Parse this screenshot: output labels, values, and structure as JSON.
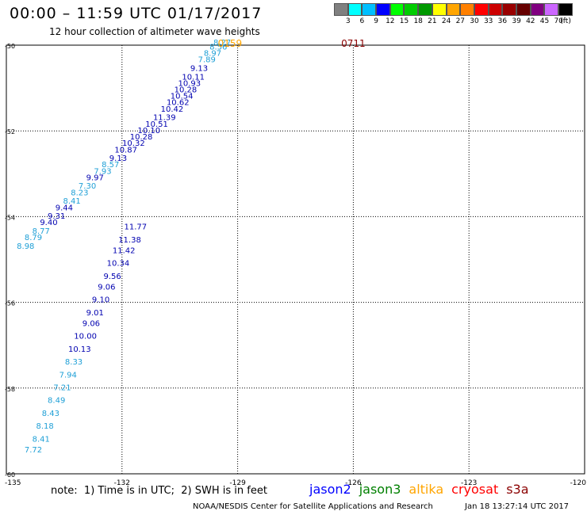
{
  "header": {
    "title": "00:00 – 11:59 UTC 01/17/2017",
    "subtitle": "12 hour collection of altimeter wave heights"
  },
  "color_scale": {
    "colors": [
      "#808080",
      "#00ffff",
      "#00bfff",
      "#0000ff",
      "#00ff00",
      "#00cc00",
      "#009900",
      "#ffff00",
      "#ffa500",
      "#ff8000",
      "#ff0000",
      "#cc0000",
      "#990000",
      "#660000",
      "#800080",
      "#cc66ff",
      "#000000"
    ],
    "labels": [
      "3",
      "6",
      "9",
      "12",
      "15",
      "18",
      "21",
      "24",
      "27",
      "30",
      "33",
      "36",
      "39",
      "42",
      "45",
      "70",
      "(ft)"
    ]
  },
  "chart_data": {
    "type": "scatter",
    "xlim": [
      -135,
      -120
    ],
    "ylim": [
      -60,
      -50
    ],
    "x_ticks": [
      "-135",
      "-132",
      "-129",
      "-126",
      "-123",
      "-120"
    ],
    "y_ticks": [
      "-50",
      "-52",
      "-54",
      "-56",
      "-58",
      "-60"
    ],
    "grid": true,
    "series_colors": {
      "jason2": "#0000cd",
      "jason3": "#008000",
      "altika": "#ffa500",
      "cryosat": "#dc143c",
      "s3a": "#8b0000"
    },
    "value_colors": {
      "light": "#1e9fd6",
      "dark": "#0000b0"
    },
    "tracks": [
      {
        "name": "jason2-a",
        "points": [
          {
            "x": -134.5,
            "y": -54.75,
            "v": "8.98",
            "c": "light"
          },
          {
            "x": -134.3,
            "y": -54.55,
            "v": "8.79",
            "c": "light"
          },
          {
            "x": -134.1,
            "y": -54.4,
            "v": "8.77",
            "c": "light"
          },
          {
            "x": -133.9,
            "y": -54.2,
            "v": "9.40",
            "c": "dark"
          },
          {
            "x": -133.7,
            "y": -54.05,
            "v": "9.31",
            "c": "dark"
          },
          {
            "x": -133.5,
            "y": -53.85,
            "v": "9.44",
            "c": "dark"
          },
          {
            "x": -133.3,
            "y": -53.7,
            "v": "8.41",
            "c": "light"
          },
          {
            "x": -133.1,
            "y": -53.5,
            "v": "8.23",
            "c": "light"
          },
          {
            "x": -132.9,
            "y": -53.35,
            "v": "7.30",
            "c": "light"
          },
          {
            "x": -132.7,
            "y": -53.15,
            "v": "9.97",
            "c": "dark"
          },
          {
            "x": -132.5,
            "y": -53.0,
            "v": "7.93",
            "c": "light"
          },
          {
            "x": -132.3,
            "y": -52.85,
            "v": "8.57",
            "c": "light"
          },
          {
            "x": -132.1,
            "y": -52.7,
            "v": "9.13",
            "c": "dark"
          },
          {
            "x": -131.9,
            "y": -52.5,
            "v": "10.87",
            "c": "dark"
          },
          {
            "x": -131.7,
            "y": -52.35,
            "v": "10.32",
            "c": "dark"
          },
          {
            "x": -131.5,
            "y": -52.2,
            "v": "10.28",
            "c": "dark"
          },
          {
            "x": -131.3,
            "y": -52.05,
            "v": "10.10",
            "c": "dark"
          },
          {
            "x": -131.1,
            "y": -51.9,
            "v": "10.51",
            "c": "dark"
          },
          {
            "x": -130.9,
            "y": -51.75,
            "v": "11.39",
            "c": "dark"
          },
          {
            "x": -130.7,
            "y": -51.55,
            "v": "10.42",
            "c": "dark"
          },
          {
            "x": -130.55,
            "y": -51.4,
            "v": "10.62",
            "c": "dark"
          },
          {
            "x": -130.45,
            "y": -51.25,
            "v": "10.54",
            "c": "dark"
          },
          {
            "x": -130.35,
            "y": -51.1,
            "v": "10.28",
            "c": "dark"
          },
          {
            "x": -130.25,
            "y": -50.95,
            "v": "10.93",
            "c": "dark"
          },
          {
            "x": -130.15,
            "y": -50.8,
            "v": "10.11",
            "c": "dark"
          },
          {
            "x": -130.0,
            "y": -50.6,
            "v": "9.13",
            "c": "dark"
          },
          {
            "x": -129.8,
            "y": -50.4,
            "v": "7.89",
            "c": "light"
          },
          {
            "x": -129.65,
            "y": -50.25,
            "v": "8.97",
            "c": "light"
          },
          {
            "x": -129.5,
            "y": -50.1,
            "v": "8.56",
            "c": "light"
          },
          {
            "x": -129.4,
            "y": -50.0,
            "v": "8.27",
            "c": "light"
          }
        ]
      },
      {
        "name": "jason2-b",
        "points": [
          {
            "x": -134.3,
            "y": -59.5,
            "v": "7.72",
            "c": "light"
          },
          {
            "x": -134.1,
            "y": -59.25,
            "v": "8.41",
            "c": "light"
          },
          {
            "x": -134.0,
            "y": -58.95,
            "v": "8.18",
            "c": "light"
          },
          {
            "x": -133.85,
            "y": -58.65,
            "v": "8.43",
            "c": "light"
          },
          {
            "x": -133.7,
            "y": -58.35,
            "v": "8.49",
            "c": "light"
          },
          {
            "x": -133.55,
            "y": -58.05,
            "v": "7.21",
            "c": "light"
          },
          {
            "x": -133.4,
            "y": -57.75,
            "v": "7.94",
            "c": "light"
          },
          {
            "x": -133.25,
            "y": -57.45,
            "v": "8.33",
            "c": "light"
          },
          {
            "x": -133.1,
            "y": -57.15,
            "v": "10.13",
            "c": "dark"
          },
          {
            "x": -132.95,
            "y": -56.85,
            "v": "10.00",
            "c": "dark"
          },
          {
            "x": -132.8,
            "y": -56.55,
            "v": "9.06",
            "c": "dark"
          },
          {
            "x": -132.7,
            "y": -56.3,
            "v": "9.01",
            "c": "dark"
          },
          {
            "x": -132.55,
            "y": -56.0,
            "v": "9.10",
            "c": "dark"
          },
          {
            "x": -132.4,
            "y": -55.7,
            "v": "9.06",
            "c": "dark"
          },
          {
            "x": -132.25,
            "y": -55.45,
            "v": "9.56",
            "c": "dark"
          },
          {
            "x": -132.1,
            "y": -55.15,
            "v": "10.34",
            "c": "dark"
          },
          {
            "x": -131.95,
            "y": -54.85,
            "v": "11.42",
            "c": "dark"
          },
          {
            "x": -131.8,
            "y": -54.6,
            "v": "11.38",
            "c": "dark"
          },
          {
            "x": -131.65,
            "y": -54.3,
            "v": "11.77",
            "c": "dark"
          }
        ]
      }
    ],
    "labels": [
      {
        "x": -126.0,
        "y": -50.0,
        "t": "0711",
        "c": "#8b0000"
      },
      {
        "x": -129.2,
        "y": -50.0,
        "t": "0159",
        "c": "#ffa500"
      }
    ]
  },
  "axis": {
    "x_left": "-135",
    "x_labels": [
      "-132",
      "-129",
      "-126",
      "-123"
    ],
    "x_right": "-120",
    "y_labels": [
      "-50",
      "-52",
      "-54",
      "-56",
      "-58",
      "-60"
    ]
  },
  "footer": {
    "note": "note:  1) Time is in UTC;  2) SWH is in feet",
    "sats": [
      {
        "name": "jason2",
        "color": "#0000ff"
      },
      {
        "name": "jason3",
        "color": "#008000"
      },
      {
        "name": "altika",
        "color": "#ffa500"
      },
      {
        "name": "cryosat",
        "color": "#ff0000"
      },
      {
        "name": "s3a",
        "color": "#8b0000"
      }
    ],
    "credit": "NOAA/NESDIS Center for Satellite Applications and Research",
    "timestamp": "Jan 18 13:27:14 UTC 2017"
  }
}
